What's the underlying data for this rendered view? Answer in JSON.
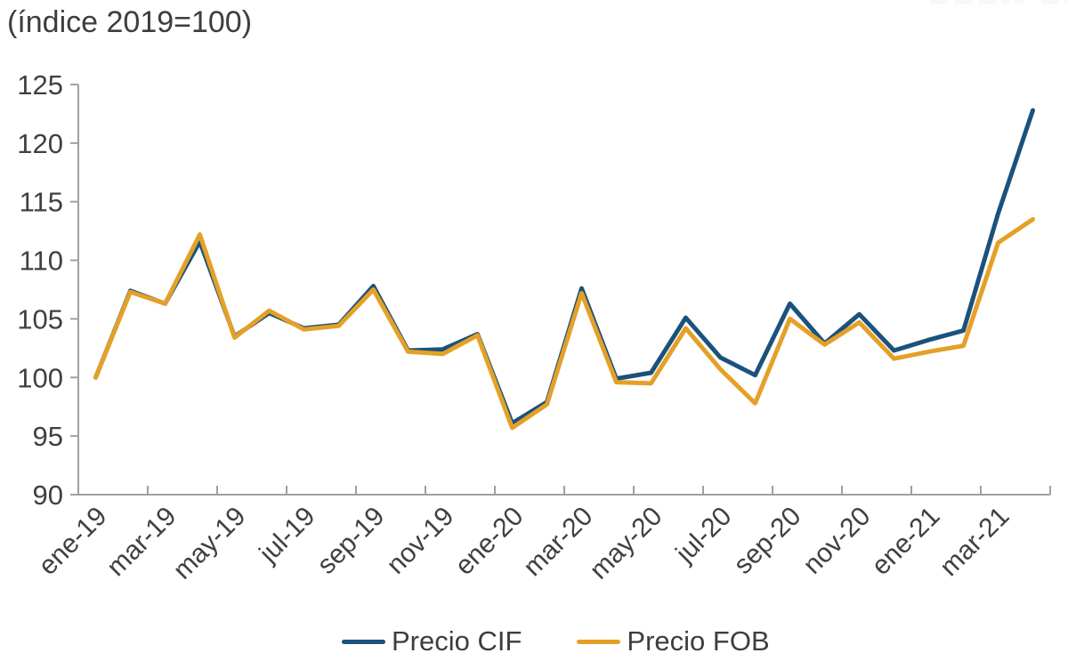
{
  "header": {
    "title": "(índice 2019=100)"
  },
  "chart_data": {
    "type": "line",
    "title": "(índice 2019=100)",
    "xlabel": "",
    "ylabel": "",
    "ylim": [
      90,
      125
    ],
    "ytick_step": 5,
    "grid": false,
    "legend_position": "bottom",
    "axis_color": "#A0A0A0",
    "label_color": "#404040",
    "categories": [
      "ene-19",
      "feb-19",
      "mar-19",
      "abr-19",
      "may-19",
      "jun-19",
      "jul-19",
      "ago-19",
      "sep-19",
      "oct-19",
      "nov-19",
      "dic-19",
      "ene-20",
      "feb-20",
      "mar-20",
      "abr-20",
      "may-20",
      "jun-20",
      "jul-20",
      "ago-20",
      "sep-20",
      "oct-20",
      "nov-20",
      "dic-20",
      "ene-21",
      "feb-21",
      "mar-21",
      "abr-21"
    ],
    "x_tick_labels": [
      "ene-19",
      "mar-19",
      "may-19",
      "jul-19",
      "sep-19",
      "nov-19",
      "ene-20",
      "mar-20",
      "may-20",
      "jul-20",
      "sep-20",
      "nov-20",
      "ene-21",
      "mar-21"
    ],
    "series": [
      {
        "name": "Precio CIF",
        "color": "#1B527C",
        "values": [
          100.0,
          107.4,
          106.3,
          111.6,
          103.5,
          105.5,
          104.2,
          104.5,
          107.8,
          102.3,
          102.4,
          103.7,
          96.1,
          97.9,
          107.6,
          99.9,
          100.4,
          105.1,
          101.7,
          100.2,
          106.3,
          102.9,
          105.4,
          102.3,
          103.2,
          104.0,
          114.0,
          122.8
        ]
      },
      {
        "name": "Precio FOB",
        "color": "#E5A027",
        "values": [
          100.0,
          107.3,
          106.3,
          112.2,
          103.4,
          105.7,
          104.1,
          104.4,
          107.5,
          102.2,
          102.0,
          103.6,
          95.7,
          97.7,
          107.2,
          99.6,
          99.5,
          104.2,
          100.7,
          97.8,
          105.0,
          102.8,
          104.7,
          101.6,
          102.2,
          102.7,
          111.5,
          113.5
        ]
      }
    ]
  }
}
